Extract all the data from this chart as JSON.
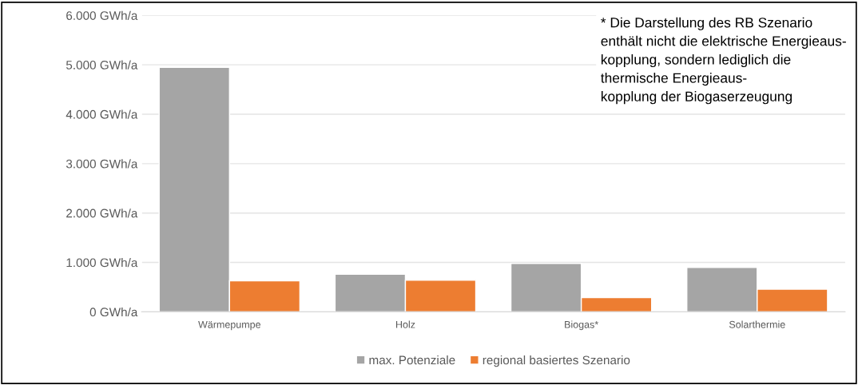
{
  "chart_data": {
    "type": "bar",
    "categories": [
      "Wärmepumpe",
      "Holz",
      "Biogas*",
      "Solarthermie"
    ],
    "series": [
      {
        "name": "max. Potenziale",
        "color": "#a5a5a5",
        "values": [
          4950,
          760,
          980,
          900
        ]
      },
      {
        "name": "regional basiertes Szenario",
        "color": "#ed7d31",
        "values": [
          630,
          640,
          290,
          460
        ]
      }
    ],
    "ylim": [
      0,
      6000
    ],
    "yticks": [
      {
        "value": 0,
        "label": "0 GWh/a"
      },
      {
        "value": 1000,
        "label": "1.000 GWh/a"
      },
      {
        "value": 2000,
        "label": "2.000 GWh/a"
      },
      {
        "value": 3000,
        "label": "3.000 GWh/a"
      },
      {
        "value": 4000,
        "label": "4.000 GWh/a"
      },
      {
        "value": 5000,
        "label": "5.000 GWh/a"
      },
      {
        "value": 6000,
        "label": "6.000 GWh/a"
      }
    ],
    "grid": "y",
    "legend": "bottom",
    "annotations": [
      "* Die Darstellung des RB Szenario enthält nicht die elektrische Energieaus-\nkopplung, sondern lediglich die thermische Energieaus-\nkopplung der Biogaserzeugung"
    ]
  }
}
